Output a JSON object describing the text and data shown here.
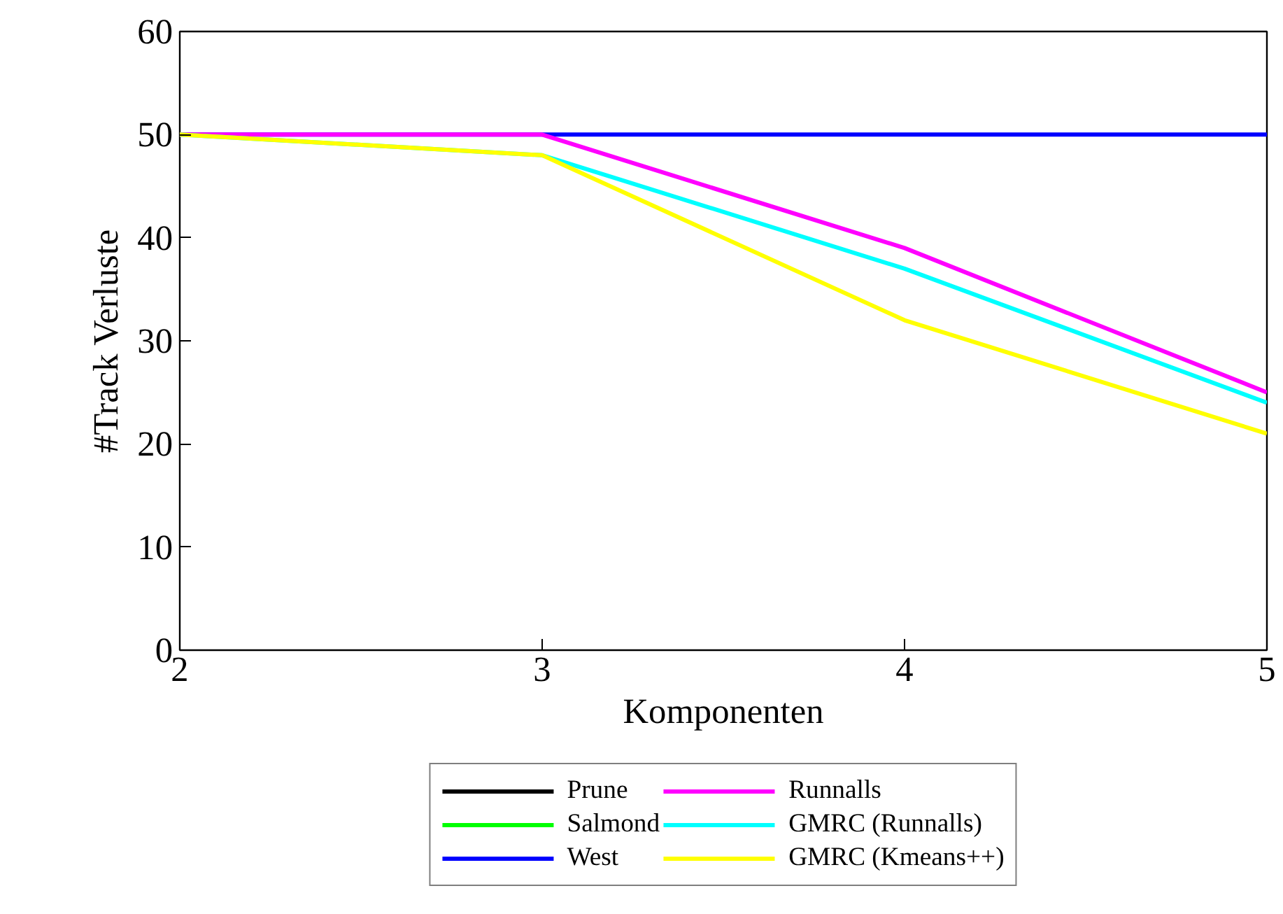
{
  "chart_data": {
    "type": "line",
    "xlabel": "Komponenten",
    "ylabel": "#Track Verluste",
    "x": [
      2,
      3,
      4,
      5
    ],
    "xlim": [
      2,
      5
    ],
    "xticks": [
      2,
      3,
      4,
      5
    ],
    "ylim": [
      0,
      60
    ],
    "yticks": [
      0,
      10,
      20,
      30,
      40,
      50,
      60
    ],
    "legend": "bottom",
    "line_style": "solid",
    "series": [
      {
        "name": "Prune",
        "color": "#000000",
        "values": [
          null,
          null,
          null,
          null
        ]
      },
      {
        "name": "Salmond",
        "color": "#00ff00",
        "values": [
          null,
          null,
          null,
          null
        ]
      },
      {
        "name": "West",
        "color": "#0000ff",
        "values": [
          50,
          50,
          50,
          50
        ]
      },
      {
        "name": "Runnalls",
        "color": "#ff00ff",
        "values": [
          50,
          50,
          39,
          25
        ]
      },
      {
        "name": "GMRC (Runnalls)",
        "color": "#00ffff",
        "values": [
          50,
          48,
          37,
          24
        ]
      },
      {
        "name": "GMRC (Kmeans++)",
        "color": "#ffff00",
        "values": [
          50,
          48,
          32,
          21
        ]
      }
    ]
  }
}
